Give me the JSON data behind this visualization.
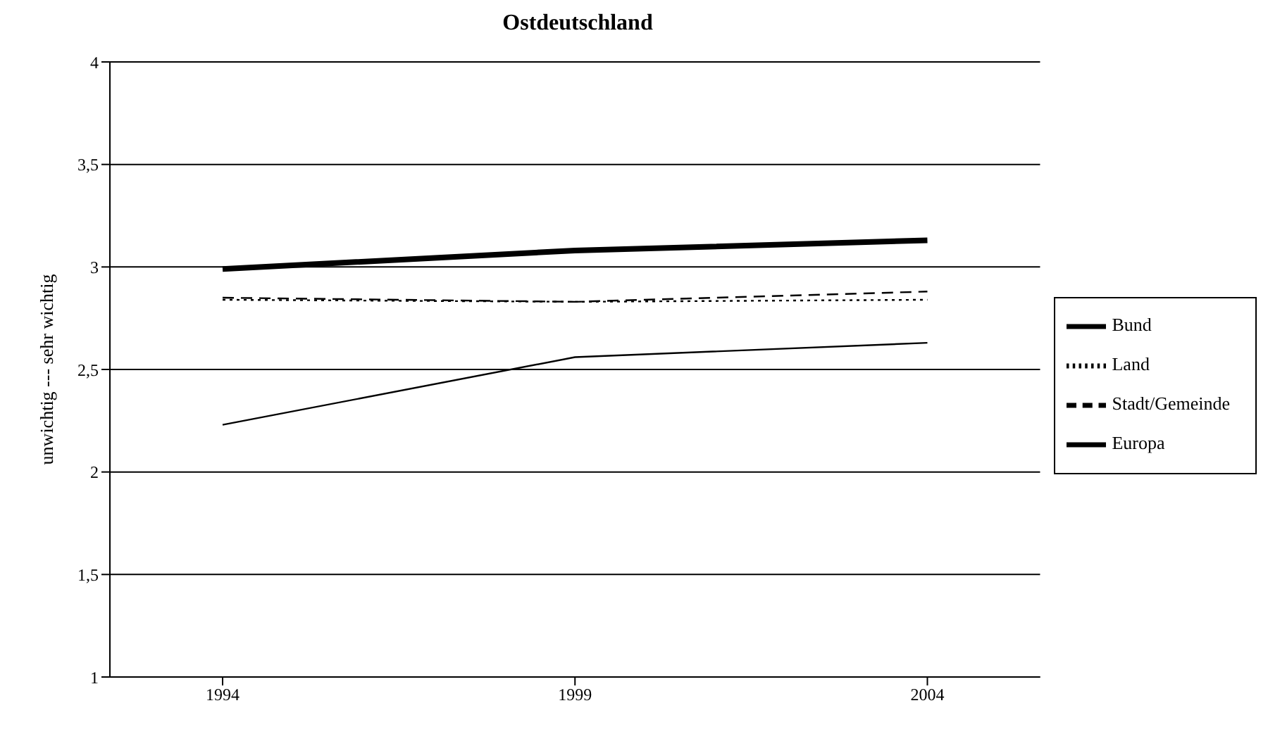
{
  "chart_data": {
    "type": "line",
    "title": "Ostdeutschland",
    "ylabel": "unwichtig --- sehr wichtig",
    "categories": [
      "1994",
      "1999",
      "2004"
    ],
    "series": [
      {
        "name": "Bund",
        "color": "#000000",
        "values": [
          2.99,
          3.08,
          3.13
        ],
        "line_style": "solid"
      },
      {
        "name": "Land",
        "color": "#000000",
        "values": [
          2.84,
          2.83,
          2.84
        ],
        "line_style": "dotted"
      },
      {
        "name": "Stadt/Gemeinde",
        "color": "#000000",
        "values": [
          2.85,
          2.83,
          2.88
        ],
        "line_style": "dashed"
      },
      {
        "name": "Europa",
        "color": "#000000",
        "values": [
          2.23,
          2.56,
          2.63
        ],
        "line_style": "solid"
      }
    ],
    "ylim": [
      1,
      4
    ],
    "yticks": [
      {
        "value": 1,
        "label": "1"
      },
      {
        "value": 1.5,
        "label": "1,5"
      },
      {
        "value": 2,
        "label": "2"
      },
      {
        "value": 2.5,
        "label": "2,5"
      },
      {
        "value": 3,
        "label": "3"
      },
      {
        "value": 3.5,
        "label": "3,5"
      },
      {
        "value": 4,
        "label": "4"
      }
    ],
    "grid": "y",
    "legend": "right",
    "marker": "none"
  }
}
